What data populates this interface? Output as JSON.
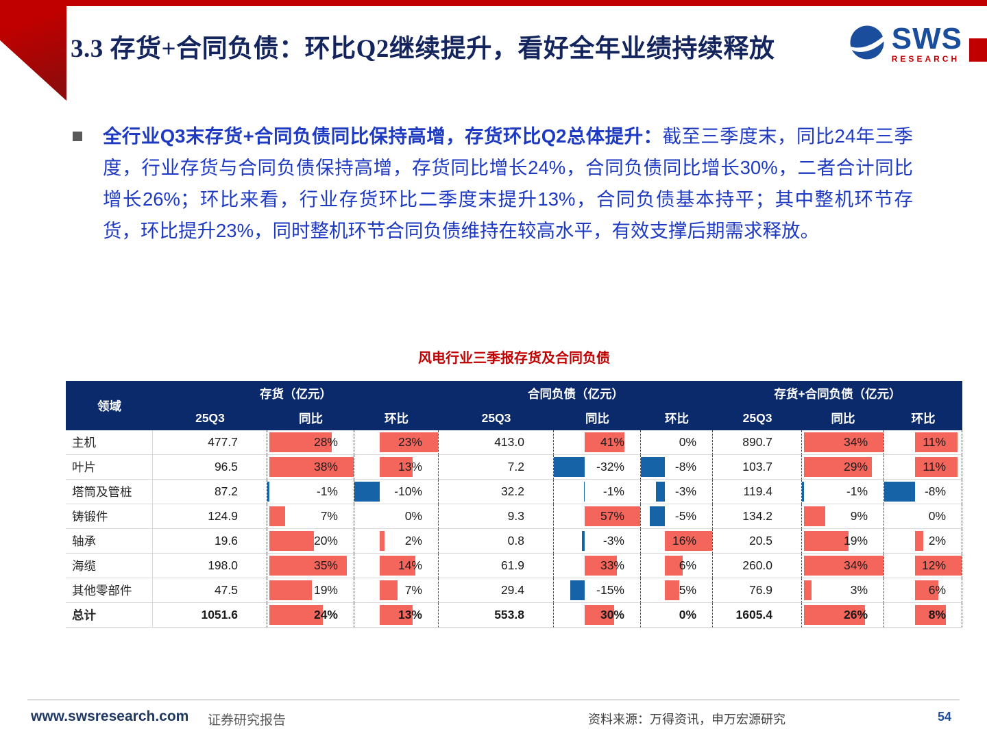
{
  "slide": {
    "title": "3.3 存货+合同负债：环比Q2继续提升，看好全年业绩持续释放",
    "logo": {
      "name": "SWS",
      "sub": "RESEARCH"
    },
    "bullet": {
      "lead": "全行业Q3末存货+合同负债同比保持高增，存货环比Q2总体提升：",
      "body": "截至三季度末，同比24年三季度，行业存货与合同负债保持高增，存货同比增长24%，合同负债同比增长30%，二者合计同比增长26%；环比来看，行业存货环比二季度末提升13%，合同负债基本持平；其中整机环节存货，环比提升23%，同时整机环节合同负债维持在较高水平，有效支撑后期需求释放。"
    }
  },
  "table": {
    "title": "风电行业三季报存货及合同负债",
    "corner": "领域",
    "groups": [
      "存货（亿元）",
      "合同负债（亿元）",
      "存货+合同负债（亿元）"
    ],
    "sub_headers": [
      "25Q3",
      "同比",
      "环比"
    ],
    "rows": [
      {
        "name": "主机",
        "bold": false,
        "values": [
          "477.7",
          "28%",
          "23%",
          "413.0",
          "41%",
          "0%",
          "890.7",
          "34%",
          "11%"
        ]
      },
      {
        "name": "叶片",
        "bold": false,
        "values": [
          "96.5",
          "38%",
          "13%",
          "7.2",
          "-32%",
          "-8%",
          "103.7",
          "29%",
          "11%"
        ]
      },
      {
        "name": "塔筒及管桩",
        "bold": false,
        "values": [
          "87.2",
          "-1%",
          "-10%",
          "32.2",
          "-1%",
          "-3%",
          "119.4",
          "-1%",
          "-8%"
        ]
      },
      {
        "name": "铸锻件",
        "bold": false,
        "values": [
          "124.9",
          "7%",
          "0%",
          "9.3",
          "57%",
          "-5%",
          "134.2",
          "9%",
          "0%"
        ]
      },
      {
        "name": "轴承",
        "bold": false,
        "values": [
          "19.6",
          "20%",
          "2%",
          "0.8",
          "-3%",
          "16%",
          "20.5",
          "19%",
          "2%"
        ]
      },
      {
        "name": "海缆",
        "bold": false,
        "values": [
          "198.0",
          "35%",
          "14%",
          "61.9",
          "33%",
          "6%",
          "260.0",
          "34%",
          "12%"
        ]
      },
      {
        "name": "其他零部件",
        "bold": false,
        "values": [
          "47.5",
          "19%",
          "7%",
          "29.4",
          "-15%",
          "5%",
          "76.9",
          "3%",
          "6%"
        ]
      },
      {
        "name": "总计",
        "bold": true,
        "values": [
          "1051.6",
          "24%",
          "13%",
          "553.8",
          "30%",
          "0%",
          "1605.4",
          "26%",
          "8%"
        ]
      }
    ]
  },
  "footer": {
    "website": "www.swsresearch.com",
    "report_type": "证券研究报告",
    "source": "资料来源：万得资讯，申万宏源研究",
    "page": "54"
  },
  "colors": {
    "brand-red": "#C00000",
    "dark-red": "#8E0B0B",
    "header-navy": "#0B2A6B",
    "title-navy": "#14255E",
    "body-blue": "#1E3AC2",
    "bar-pos": "#F4655C",
    "bar-neg": "#1663A8",
    "logo-blue": "#1A4E9C"
  }
}
